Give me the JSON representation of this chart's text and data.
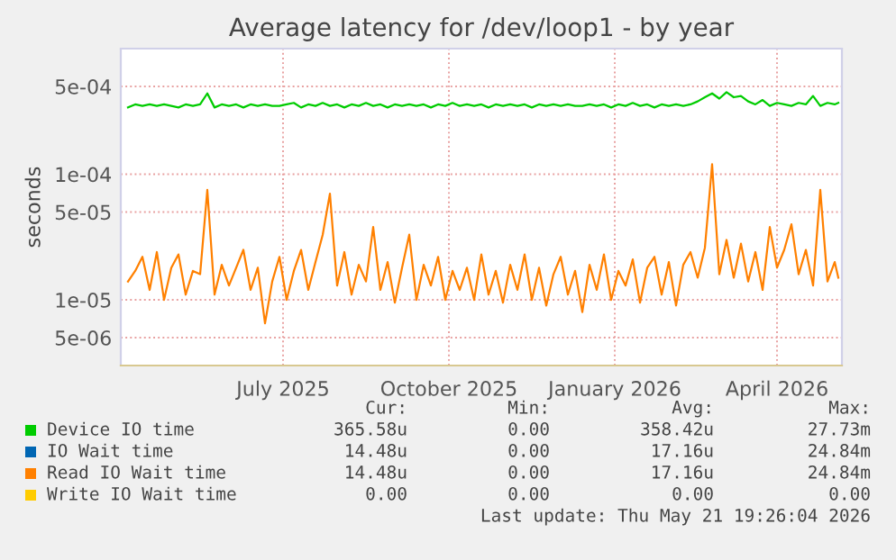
{
  "chart_data": {
    "type": "line",
    "title": "Average latency for /dev/loop1 - by year",
    "ylabel": "seconds",
    "log": "y",
    "grid": true,
    "legend": "bottom",
    "marker": "none",
    "line_style": "solid",
    "xlim": [
      "2025-04-17",
      "2026-05-22"
    ],
    "xticks": [
      {
        "value": "2025-07-16",
        "label": "July 2025"
      },
      {
        "value": "2025-10-16",
        "label": "October 2025"
      },
      {
        "value": "2026-01-16",
        "label": "January 2026"
      },
      {
        "value": "2026-04-16",
        "label": "April 2026"
      }
    ],
    "ylim": [
      3e-06,
      0.001
    ],
    "yticks": [
      {
        "value": 5e-06,
        "label": "5e-06"
      },
      {
        "value": 1e-05,
        "label": "1e-05"
      },
      {
        "value": 5e-05,
        "label": "5e-05"
      },
      {
        "value": 0.0001,
        "label": "1e-04"
      },
      {
        "value": 0.0005,
        "label": "5e-04"
      }
    ],
    "x": [
      "2025-04-21",
      "2025-04-25",
      "2025-04-29",
      "2025-05-03",
      "2025-05-07",
      "2025-05-11",
      "2025-05-15",
      "2025-05-19",
      "2025-05-23",
      "2025-05-27",
      "2025-05-31",
      "2025-06-04",
      "2025-06-08",
      "2025-06-12",
      "2025-06-16",
      "2025-06-20",
      "2025-06-24",
      "2025-06-28",
      "2025-07-02",
      "2025-07-06",
      "2025-07-10",
      "2025-07-14",
      "2025-07-18",
      "2025-07-22",
      "2025-07-26",
      "2025-07-30",
      "2025-08-03",
      "2025-08-07",
      "2025-08-11",
      "2025-08-15",
      "2025-08-19",
      "2025-08-23",
      "2025-08-27",
      "2025-08-31",
      "2025-09-04",
      "2025-09-08",
      "2025-09-12",
      "2025-09-16",
      "2025-09-20",
      "2025-09-24",
      "2025-09-28",
      "2025-10-02",
      "2025-10-06",
      "2025-10-10",
      "2025-10-14",
      "2025-10-18",
      "2025-10-22",
      "2025-10-26",
      "2025-10-30",
      "2025-11-03",
      "2025-11-07",
      "2025-11-11",
      "2025-11-15",
      "2025-11-19",
      "2025-11-23",
      "2025-11-27",
      "2025-12-01",
      "2025-12-05",
      "2025-12-09",
      "2025-12-13",
      "2025-12-17",
      "2025-12-21",
      "2025-12-25",
      "2025-12-29",
      "2026-01-02",
      "2026-01-06",
      "2026-01-10",
      "2026-01-14",
      "2026-01-18",
      "2026-01-22",
      "2026-01-26",
      "2026-01-30",
      "2026-02-03",
      "2026-02-07",
      "2026-02-11",
      "2026-02-15",
      "2026-02-19",
      "2026-02-23",
      "2026-02-27",
      "2026-03-03",
      "2026-03-07",
      "2026-03-11",
      "2026-03-15",
      "2026-03-19",
      "2026-03-23",
      "2026-03-27",
      "2026-03-31",
      "2026-04-04",
      "2026-04-08",
      "2026-04-12",
      "2026-04-16",
      "2026-04-20",
      "2026-04-24",
      "2026-04-28",
      "2026-05-02",
      "2026-05-06",
      "2026-05-10",
      "2026-05-14",
      "2026-05-18",
      "2026-05-20"
    ],
    "series": [
      {
        "name": "Device IO time",
        "color": "#00cc00",
        "values": [
          0.00034,
          0.00036,
          0.00035,
          0.00036,
          0.00035,
          0.00036,
          0.00035,
          0.00034,
          0.00036,
          0.00035,
          0.00036,
          0.00044,
          0.00034,
          0.00036,
          0.00035,
          0.00036,
          0.00034,
          0.00036,
          0.00035,
          0.00036,
          0.00035,
          0.00035,
          0.00036,
          0.00037,
          0.00034,
          0.00036,
          0.00035,
          0.00037,
          0.00035,
          0.00036,
          0.00034,
          0.00036,
          0.00035,
          0.00037,
          0.00035,
          0.00036,
          0.00034,
          0.00036,
          0.00035,
          0.00036,
          0.00035,
          0.00036,
          0.00034,
          0.00036,
          0.00035,
          0.00037,
          0.00035,
          0.00036,
          0.00035,
          0.00036,
          0.00034,
          0.00036,
          0.00035,
          0.00036,
          0.00035,
          0.00036,
          0.00034,
          0.00036,
          0.00035,
          0.00036,
          0.00035,
          0.00036,
          0.00035,
          0.00035,
          0.00036,
          0.00035,
          0.00036,
          0.00034,
          0.00036,
          0.00035,
          0.00037,
          0.00035,
          0.00036,
          0.00034,
          0.00036,
          0.00035,
          0.00036,
          0.00035,
          0.00036,
          0.00038,
          0.00041,
          0.00044,
          0.0004,
          0.00045,
          0.00041,
          0.00042,
          0.00038,
          0.00036,
          0.00039,
          0.00035,
          0.00037,
          0.00036,
          0.00035,
          0.00037,
          0.00036,
          0.00042,
          0.00035,
          0.00037,
          0.00036,
          0.00037
        ]
      },
      {
        "name": "IO Wait time",
        "color": "#0066b3",
        "values": [
          null,
          null,
          null,
          null,
          null,
          null,
          null,
          null,
          null,
          null,
          null,
          null,
          null,
          null,
          null,
          null,
          null,
          null,
          null,
          null,
          null,
          null,
          null,
          null,
          null,
          null,
          null,
          null,
          null,
          null,
          null,
          null,
          null,
          null,
          null,
          null,
          null,
          null,
          null,
          null,
          null,
          null,
          null,
          null,
          null,
          null,
          null,
          null,
          null,
          null,
          null,
          null,
          null,
          null,
          null,
          null,
          null,
          null,
          null,
          null,
          null,
          null,
          null,
          null,
          null,
          null,
          null,
          null,
          null,
          null,
          null,
          null,
          null,
          null,
          null,
          null,
          null,
          null,
          null,
          null,
          null,
          null,
          null,
          null,
          null,
          null,
          null,
          null,
          null,
          null,
          null,
          null,
          null,
          null,
          null,
          null,
          null,
          null,
          null,
          null
        ]
      },
      {
        "name": "Read IO Wait time",
        "color": "#ff8000",
        "values": [
          1.4e-05,
          1.7e-05,
          2.2e-05,
          1.2e-05,
          2.4e-05,
          1e-05,
          1.8e-05,
          2.3e-05,
          1.1e-05,
          1.7e-05,
          1.6e-05,
          7.5e-05,
          1.1e-05,
          1.9e-05,
          1.3e-05,
          1.8e-05,
          2.5e-05,
          1.2e-05,
          1.8e-05,
          6.5e-06,
          1.4e-05,
          2.2e-05,
          1e-05,
          1.7e-05,
          2.5e-05,
          1.2e-05,
          2e-05,
          3.3e-05,
          7e-05,
          1.3e-05,
          2.4e-05,
          1.1e-05,
          1.9e-05,
          1.4e-05,
          3.8e-05,
          1.2e-05,
          2e-05,
          9.5e-06,
          1.8e-05,
          3.3e-05,
          1e-05,
          1.9e-05,
          1.3e-05,
          2.2e-05,
          1e-05,
          1.7e-05,
          1.2e-05,
          1.8e-05,
          1e-05,
          2.3e-05,
          1.1e-05,
          1.7e-05,
          9.5e-06,
          1.9e-05,
          1.2e-05,
          2.3e-05,
          1e-05,
          1.8e-05,
          9e-06,
          1.6e-05,
          2.2e-05,
          1.1e-05,
          1.7e-05,
          8e-06,
          1.9e-05,
          1.2e-05,
          2.3e-05,
          1e-05,
          1.7e-05,
          1.3e-05,
          2.1e-05,
          9.5e-06,
          1.8e-05,
          2.2e-05,
          1.1e-05,
          2e-05,
          9e-06,
          1.9e-05,
          2.4e-05,
          1.5e-05,
          2.6e-05,
          0.00012,
          1.6e-05,
          3e-05,
          1.5e-05,
          2.8e-05,
          1.4e-05,
          2.4e-05,
          1.2e-05,
          3.8e-05,
          1.8e-05,
          2.5e-05,
          4e-05,
          1.6e-05,
          2.5e-05,
          1.3e-05,
          7.5e-05,
          1.4e-05,
          2e-05,
          1.5e-05
        ]
      },
      {
        "name": "Write IO Wait time",
        "color": "#ffcc00",
        "values": [
          null,
          null,
          null,
          null,
          null,
          null,
          null,
          null,
          null,
          null,
          null,
          null,
          null,
          null,
          null,
          null,
          null,
          null,
          null,
          null,
          null,
          null,
          null,
          null,
          null,
          null,
          null,
          null,
          null,
          null,
          null,
          null,
          null,
          null,
          null,
          null,
          null,
          null,
          null,
          null,
          null,
          null,
          null,
          null,
          null,
          null,
          null,
          null,
          null,
          null,
          null,
          null,
          null,
          null,
          null,
          null,
          null,
          null,
          null,
          null,
          null,
          null,
          null,
          null,
          null,
          null,
          null,
          null,
          null,
          null,
          null,
          null,
          null,
          null,
          null,
          null,
          null,
          null,
          null,
          null,
          null,
          null,
          null,
          null,
          null,
          null,
          null,
          null,
          null,
          null,
          null,
          null,
          null,
          null,
          null,
          null,
          null,
          null,
          null,
          null
        ]
      }
    ],
    "annotations": [
      "Cur:",
      "Min:",
      "Avg:",
      "Max:",
      "365.58u",
      "0.00",
      "358.42u",
      "27.73m",
      "14.48u",
      "0.00",
      "17.16u",
      "24.84m",
      "14.48u",
      "0.00",
      "17.16u",
      "24.84m",
      "0.00",
      "0.00",
      "0.00",
      "0.00",
      "Last update: Thu May 21 19:26:04 2026"
    ]
  }
}
